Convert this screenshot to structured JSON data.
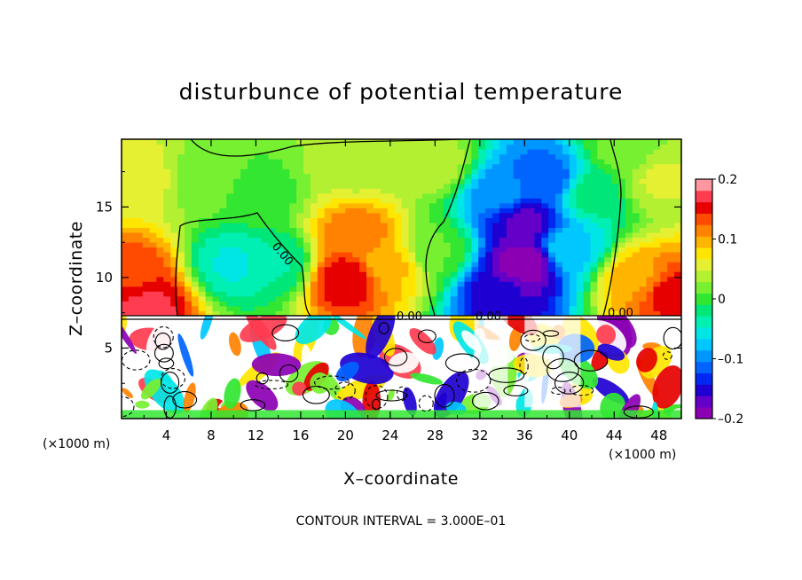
{
  "chart_data": {
    "type": "heatmap",
    "title": "disturbunce of potential temperature",
    "xlabel": "X–coordinate",
    "ylabel": "Z–coordinate",
    "x_unit_label": "(×1000 m)",
    "x_unit_label_right": "(×1000 m)",
    "x_ticks": [
      "4",
      "8",
      "12",
      "16",
      "20",
      "24",
      "28",
      "32",
      "36",
      "40",
      "44",
      "48"
    ],
    "y_ticks": [
      "5",
      "10",
      "15"
    ],
    "xlim": [
      0,
      50
    ],
    "ylim": [
      0,
      19.8
    ],
    "colorbar": {
      "min": -0.2,
      "max": 0.2,
      "tick_labels": [
        "0.2",
        "0.1",
        "0",
        "–0.1",
        "–0.2"
      ],
      "tick_values": [
        0.2,
        0.1,
        0,
        -0.1,
        -0.2
      ],
      "colors": [
        "#8c00b4",
        "#6400c8",
        "#1e00d2",
        "#0028f0",
        "#0064ff",
        "#0096ff",
        "#00c8ff",
        "#00e6e6",
        "#00f0b4",
        "#00e678",
        "#32e632",
        "#78f032",
        "#b4f032",
        "#e6f032",
        "#ffe600",
        "#ffb400",
        "#ff8200",
        "#ff4b00",
        "#e60000",
        "#ff3c50",
        "#ff96a0"
      ]
    },
    "contour_labels": [
      "0.00",
      "0.00",
      "0.00",
      "0.00"
    ],
    "contour_interval_text": "CONTOUR INTERVAL = 3.000E–01",
    "upper_field_points": [
      {
        "x": 1,
        "z": 17,
        "v": 0.06
      },
      {
        "x": 1,
        "z": 10,
        "v": 0.14
      },
      {
        "x": 2,
        "z": 8,
        "v": 0.17
      },
      {
        "x": 8,
        "z": 17,
        "v": 0.02
      },
      {
        "x": 10,
        "z": 11,
        "v": -0.05
      },
      {
        "x": 14,
        "z": 11,
        "v": -0.03
      },
      {
        "x": 12,
        "z": 16,
        "v": 0.0
      },
      {
        "x": 20,
        "z": 10,
        "v": 0.16
      },
      {
        "x": 21,
        "z": 13,
        "v": 0.12
      },
      {
        "x": 24,
        "z": 11,
        "v": 0.09
      },
      {
        "x": 21,
        "z": 18,
        "v": 0.04
      },
      {
        "x": 28,
        "z": 12,
        "v": 0.01
      },
      {
        "x": 28,
        "z": 18,
        "v": 0.04
      },
      {
        "x": 34,
        "z": 16,
        "v": -0.1
      },
      {
        "x": 36,
        "z": 14,
        "v": -0.17
      },
      {
        "x": 36,
        "z": 11,
        "v": -0.2
      },
      {
        "x": 34,
        "z": 9,
        "v": -0.16
      },
      {
        "x": 38,
        "z": 17,
        "v": -0.12
      },
      {
        "x": 40,
        "z": 12,
        "v": -0.07
      },
      {
        "x": 42,
        "z": 16,
        "v": -0.02
      },
      {
        "x": 46,
        "z": 10,
        "v": 0.1
      },
      {
        "x": 49,
        "z": 9,
        "v": 0.15
      },
      {
        "x": 48,
        "z": 17,
        "v": 0.05
      },
      {
        "x": 45,
        "z": 19,
        "v": 0.02
      }
    ]
  }
}
